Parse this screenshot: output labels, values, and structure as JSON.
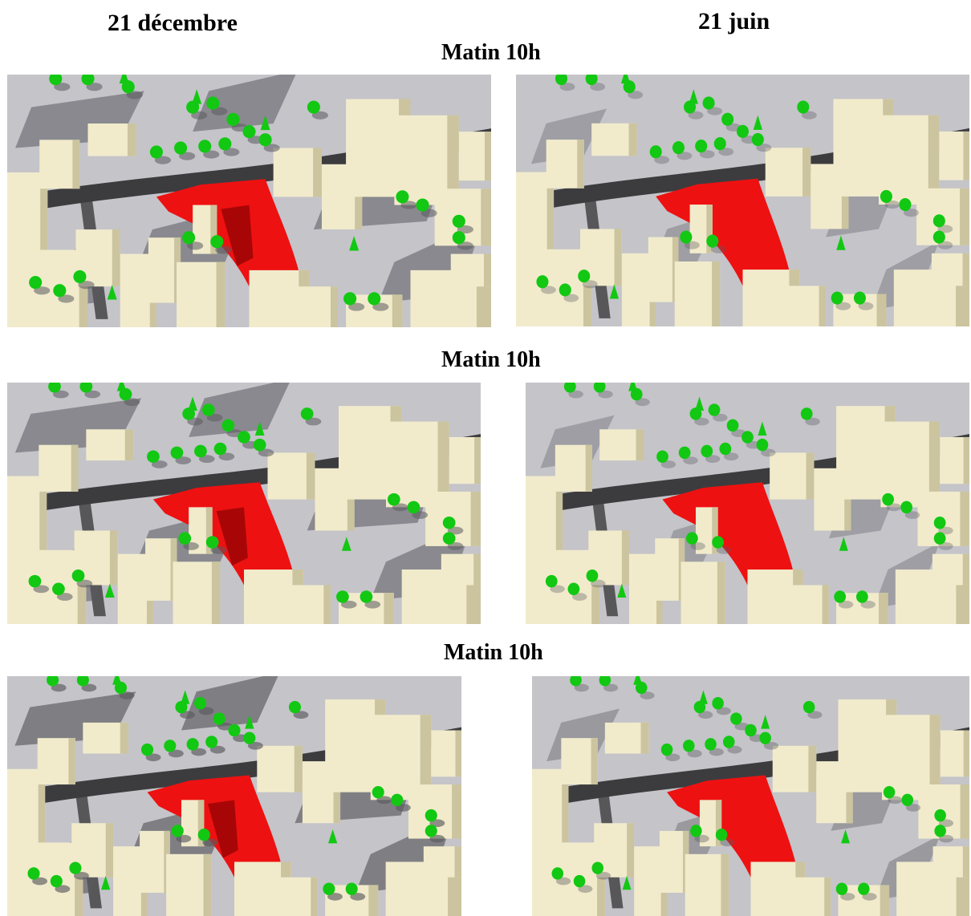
{
  "header": {
    "left_column": "21 décembre",
    "right_column": "21 juin"
  },
  "rows": [
    {
      "label": "Matin 10h"
    },
    {
      "label": "Matin 10h"
    },
    {
      "label": "Matin 10h"
    }
  ],
  "scenes": [
    {
      "season": "winter",
      "shadow_strength": 0.55
    },
    {
      "season": "summer",
      "shadow_strength": 0.35
    },
    {
      "season": "winter",
      "shadow_strength": 0.55
    },
    {
      "season": "summer",
      "shadow_strength": 0.35
    },
    {
      "season": "winter",
      "shadow_strength": 0.65
    },
    {
      "season": "summer",
      "shadow_strength": 0.4
    }
  ],
  "colors": {
    "ground": "#c4c4c9",
    "building": "#f1ebcc",
    "building_side": "#cbc49f",
    "road": "#3c3c3f",
    "highlight_plot": "#ee1111",
    "tree": "#12c812",
    "shadow": "#5a5a5e"
  }
}
